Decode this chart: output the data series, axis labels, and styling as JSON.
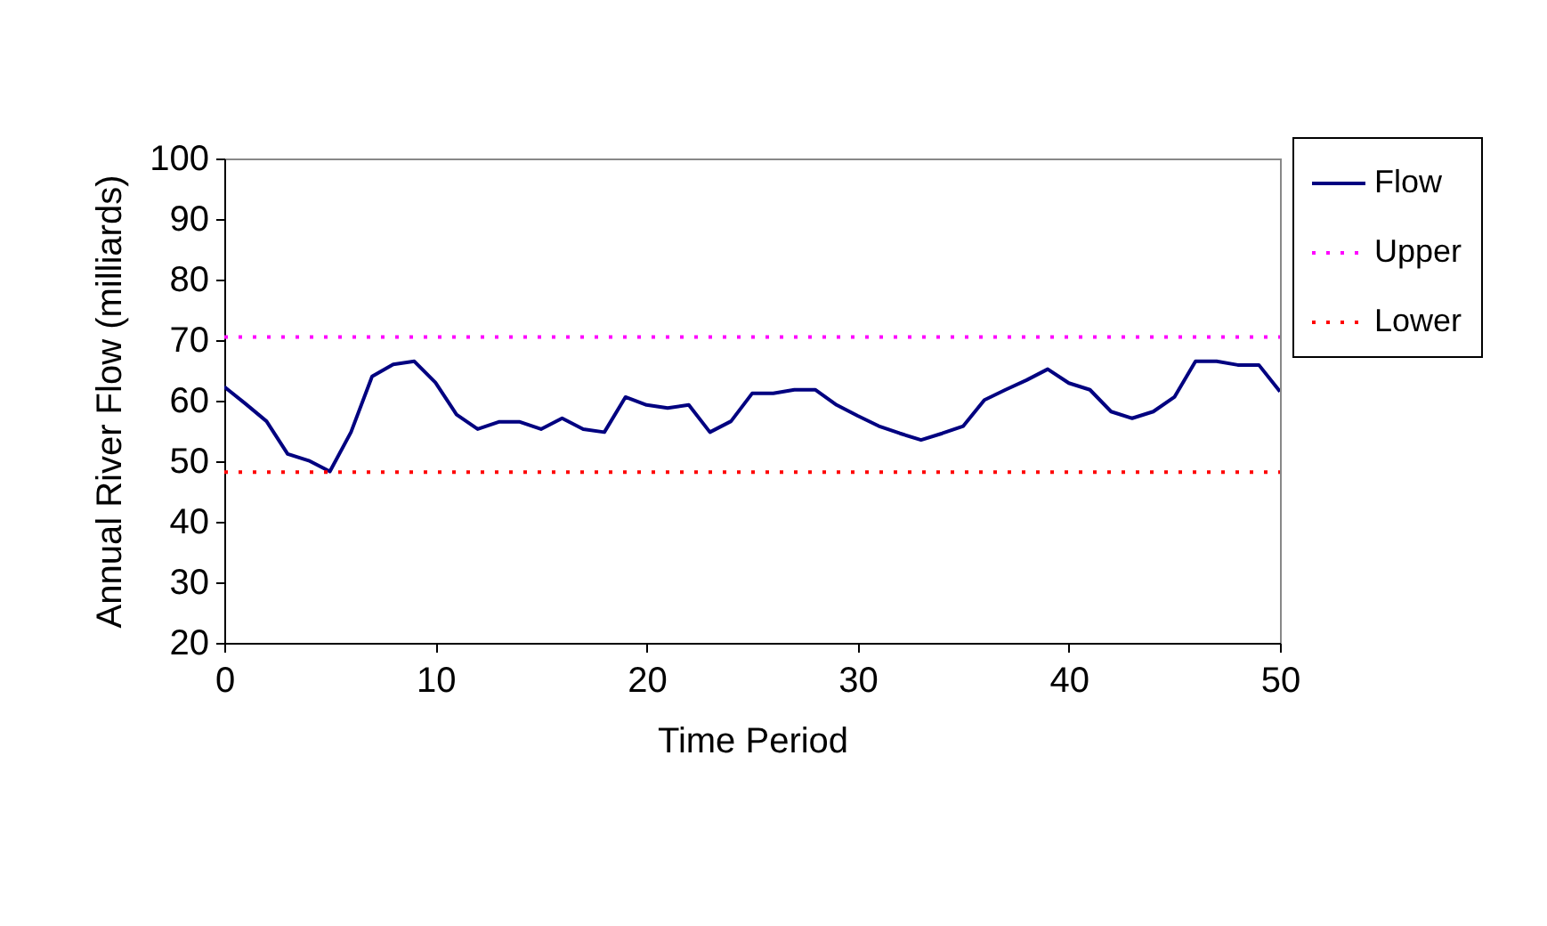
{
  "chart_data": {
    "type": "line",
    "xlabel": "Time Period",
    "ylabel": "Annual River Flow (milliards)",
    "x": [
      0,
      1,
      2,
      3,
      4,
      5,
      6,
      7,
      8,
      9,
      10,
      11,
      12,
      13,
      14,
      15,
      16,
      17,
      18,
      19,
      20,
      21,
      22,
      23,
      24,
      25,
      26,
      27,
      28,
      29,
      30,
      31,
      32,
      33,
      34,
      35,
      36,
      37,
      38,
      39,
      40,
      41,
      42,
      43,
      44,
      45,
      46,
      47,
      48,
      49,
      50
    ],
    "series": [
      {
        "name": "Flow",
        "color": "#000080",
        "line_style": "solid",
        "values": [
          62.3,
          59.5,
          56.6,
          51.2,
          50.1,
          48.3,
          54.8,
          64.0,
          66.0,
          66.5,
          63.0,
          57.7,
          55.3,
          56.5,
          56.5,
          55.3,
          57.1,
          55.3,
          54.8,
          60.6,
          59.3,
          58.8,
          59.3,
          54.8,
          56.6,
          61.2,
          61.2,
          61.8,
          61.8,
          59.3,
          57.5,
          55.8,
          54.6,
          53.5,
          54.6,
          55.8,
          60.1,
          61.8,
          63.4,
          65.2,
          62.9,
          61.8,
          58.2,
          57.1,
          58.2,
          60.6,
          66.5,
          66.5,
          65.9,
          65.9,
          61.5
        ]
      },
      {
        "name": "Upper",
        "color": "#ff00ff",
        "line_style": "dotted",
        "values": [
          70.5,
          70.5,
          70.5,
          70.5,
          70.5,
          70.5,
          70.5,
          70.5,
          70.5,
          70.5,
          70.5,
          70.5,
          70.5,
          70.5,
          70.5,
          70.5,
          70.5,
          70.5,
          70.5,
          70.5,
          70.5,
          70.5,
          70.5,
          70.5,
          70.5,
          70.5,
          70.5,
          70.5,
          70.5,
          70.5,
          70.5,
          70.5,
          70.5,
          70.5,
          70.5,
          70.5,
          70.5,
          70.5,
          70.5,
          70.5,
          70.5,
          70.5,
          70.5,
          70.5,
          70.5,
          70.5,
          70.5,
          70.5,
          70.5,
          70.5,
          70.5
        ]
      },
      {
        "name": "Lower",
        "color": "#ff0000",
        "line_style": "dotted",
        "values": [
          48.2,
          48.2,
          48.2,
          48.2,
          48.2,
          48.2,
          48.2,
          48.2,
          48.2,
          48.2,
          48.2,
          48.2,
          48.2,
          48.2,
          48.2,
          48.2,
          48.2,
          48.2,
          48.2,
          48.2,
          48.2,
          48.2,
          48.2,
          48.2,
          48.2,
          48.2,
          48.2,
          48.2,
          48.2,
          48.2,
          48.2,
          48.2,
          48.2,
          48.2,
          48.2,
          48.2,
          48.2,
          48.2,
          48.2,
          48.2,
          48.2,
          48.2,
          48.2,
          48.2,
          48.2,
          48.2,
          48.2,
          48.2,
          48.2,
          48.2,
          48.2
        ]
      }
    ],
    "xlim": [
      0,
      50
    ],
    "xticks": [
      0,
      10,
      20,
      30,
      40,
      50
    ],
    "ylim": [
      20,
      100
    ],
    "yticks": [
      20,
      30,
      40,
      50,
      60,
      70,
      80,
      90,
      100
    ],
    "grid": false,
    "legend": "right",
    "marker": "none"
  }
}
